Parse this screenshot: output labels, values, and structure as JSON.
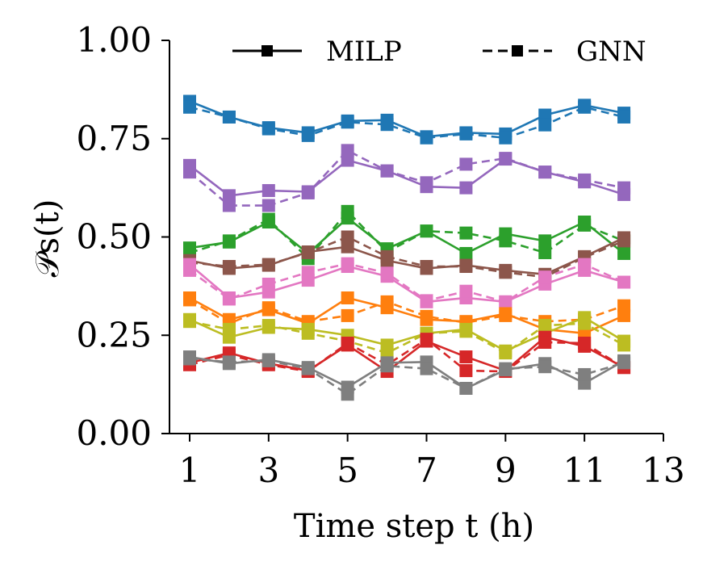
{
  "chart_data": {
    "type": "line",
    "xlabel": "Time step t (h)",
    "ylabel": "𝒫s(t)",
    "xlim": [
      0.5,
      13
    ],
    "ylim": [
      0,
      1
    ],
    "x_ticks": [
      1,
      3,
      5,
      7,
      9,
      11,
      13
    ],
    "y_ticks": [
      0.0,
      0.25,
      0.5,
      0.75,
      1.0
    ],
    "x_tick_labels": [
      "1",
      "3",
      "5",
      "7",
      "9",
      "11",
      "13"
    ],
    "y_tick_labels": [
      "0.00",
      "0.25",
      "0.50",
      "0.75",
      "1.00"
    ],
    "grid": false,
    "legend_position": "top",
    "legend": [
      {
        "label": "MILP",
        "style": "solid"
      },
      {
        "label": "GNN",
        "style": "dashed"
      }
    ],
    "x": [
      1,
      2,
      3,
      4,
      5,
      6,
      7,
      8,
      9,
      10,
      11,
      12
    ],
    "series": [
      {
        "color": "#1f77b4",
        "milp": [
          0.845,
          0.805,
          0.778,
          0.765,
          0.795,
          0.797,
          0.755,
          0.765,
          0.762,
          0.81,
          0.835,
          0.815
        ],
        "gnn": [
          0.83,
          0.805,
          0.775,
          0.758,
          0.792,
          0.786,
          0.752,
          0.762,
          0.752,
          0.785,
          0.83,
          0.805
        ]
      },
      {
        "color": "#9467bd",
        "milp": [
          0.682,
          0.605,
          0.618,
          0.615,
          0.695,
          0.668,
          0.628,
          0.625,
          0.698,
          0.665,
          0.64,
          0.608
        ],
        "gnn": [
          0.665,
          0.58,
          0.58,
          0.612,
          0.72,
          0.668,
          0.638,
          0.685,
          0.7,
          0.665,
          0.645,
          0.625
        ]
      },
      {
        "color": "#2ca02c",
        "milp": [
          0.472,
          0.487,
          0.538,
          0.458,
          0.548,
          0.47,
          0.515,
          0.458,
          0.508,
          0.49,
          0.538,
          0.458
        ]
      },
      {
        "color": "#2ca02c",
        "dummy": true
      },
      {
        "color": "#8c564b",
        "milp": [
          0.44,
          0.42,
          0.428,
          0.462,
          0.475,
          0.44,
          0.42,
          0.428,
          0.415,
          0.405,
          0.45,
          0.498
        ],
        "gnn": [
          0.435,
          0.425,
          0.43,
          0.46,
          0.5,
          0.45,
          0.425,
          0.425,
          0.41,
          0.398,
          0.448,
          0.49
        ]
      },
      {
        "color": "#e377c2",
        "milp": [
          0.43,
          0.345,
          0.36,
          0.39,
          0.425,
          0.4,
          0.335,
          0.345,
          0.335,
          0.38,
          0.415,
          0.385
        ],
        "gnn": [
          0.415,
          0.342,
          0.38,
          0.41,
          0.432,
          0.408,
          0.338,
          0.362,
          0.335,
          0.398,
          0.43,
          0.385
        ]
      },
      {
        "color": "#ff7f0e",
        "milp": [
          0.345,
          0.29,
          0.315,
          0.28,
          0.345,
          0.32,
          0.29,
          0.285,
          0.305,
          0.265,
          0.255,
          0.3
        ],
        "gnn": [
          0.34,
          0.28,
          0.32,
          0.285,
          0.3,
          0.335,
          0.298,
          0.282,
          0.3,
          0.285,
          0.29,
          0.325
        ]
      },
      {
        "color": "#bcbd22",
        "milp": [
          0.29,
          0.245,
          0.27,
          0.265,
          0.25,
          0.225,
          0.255,
          0.265,
          0.21,
          0.255,
          0.295,
          0.235
        ],
        "gnn": [
          0.285,
          0.265,
          0.275,
          0.255,
          0.235,
          0.205,
          0.255,
          0.26,
          0.205,
          0.275,
          0.28,
          0.225
        ]
      },
      {
        "color": "#d62728",
        "milp": [
          0.18,
          0.205,
          0.178,
          0.16,
          0.225,
          0.158,
          0.235,
          0.195,
          0.16,
          0.245,
          0.222,
          0.168
        ],
        "gnn": [
          0.175,
          0.2,
          0.175,
          0.158,
          0.23,
          0.175,
          0.24,
          0.16,
          0.158,
          0.232,
          0.23,
          0.168
        ]
      },
      {
        "color": "#7f7f7f",
        "milp": [
          0.195,
          0.178,
          0.188,
          0.168,
          0.118,
          0.18,
          0.182,
          0.115,
          0.162,
          0.178,
          0.128,
          0.185
        ],
        "gnn": [
          0.19,
          0.182,
          0.185,
          0.165,
          0.1,
          0.172,
          0.165,
          0.115,
          0.165,
          0.17,
          0.15,
          0.18
        ]
      }
    ]
  }
}
